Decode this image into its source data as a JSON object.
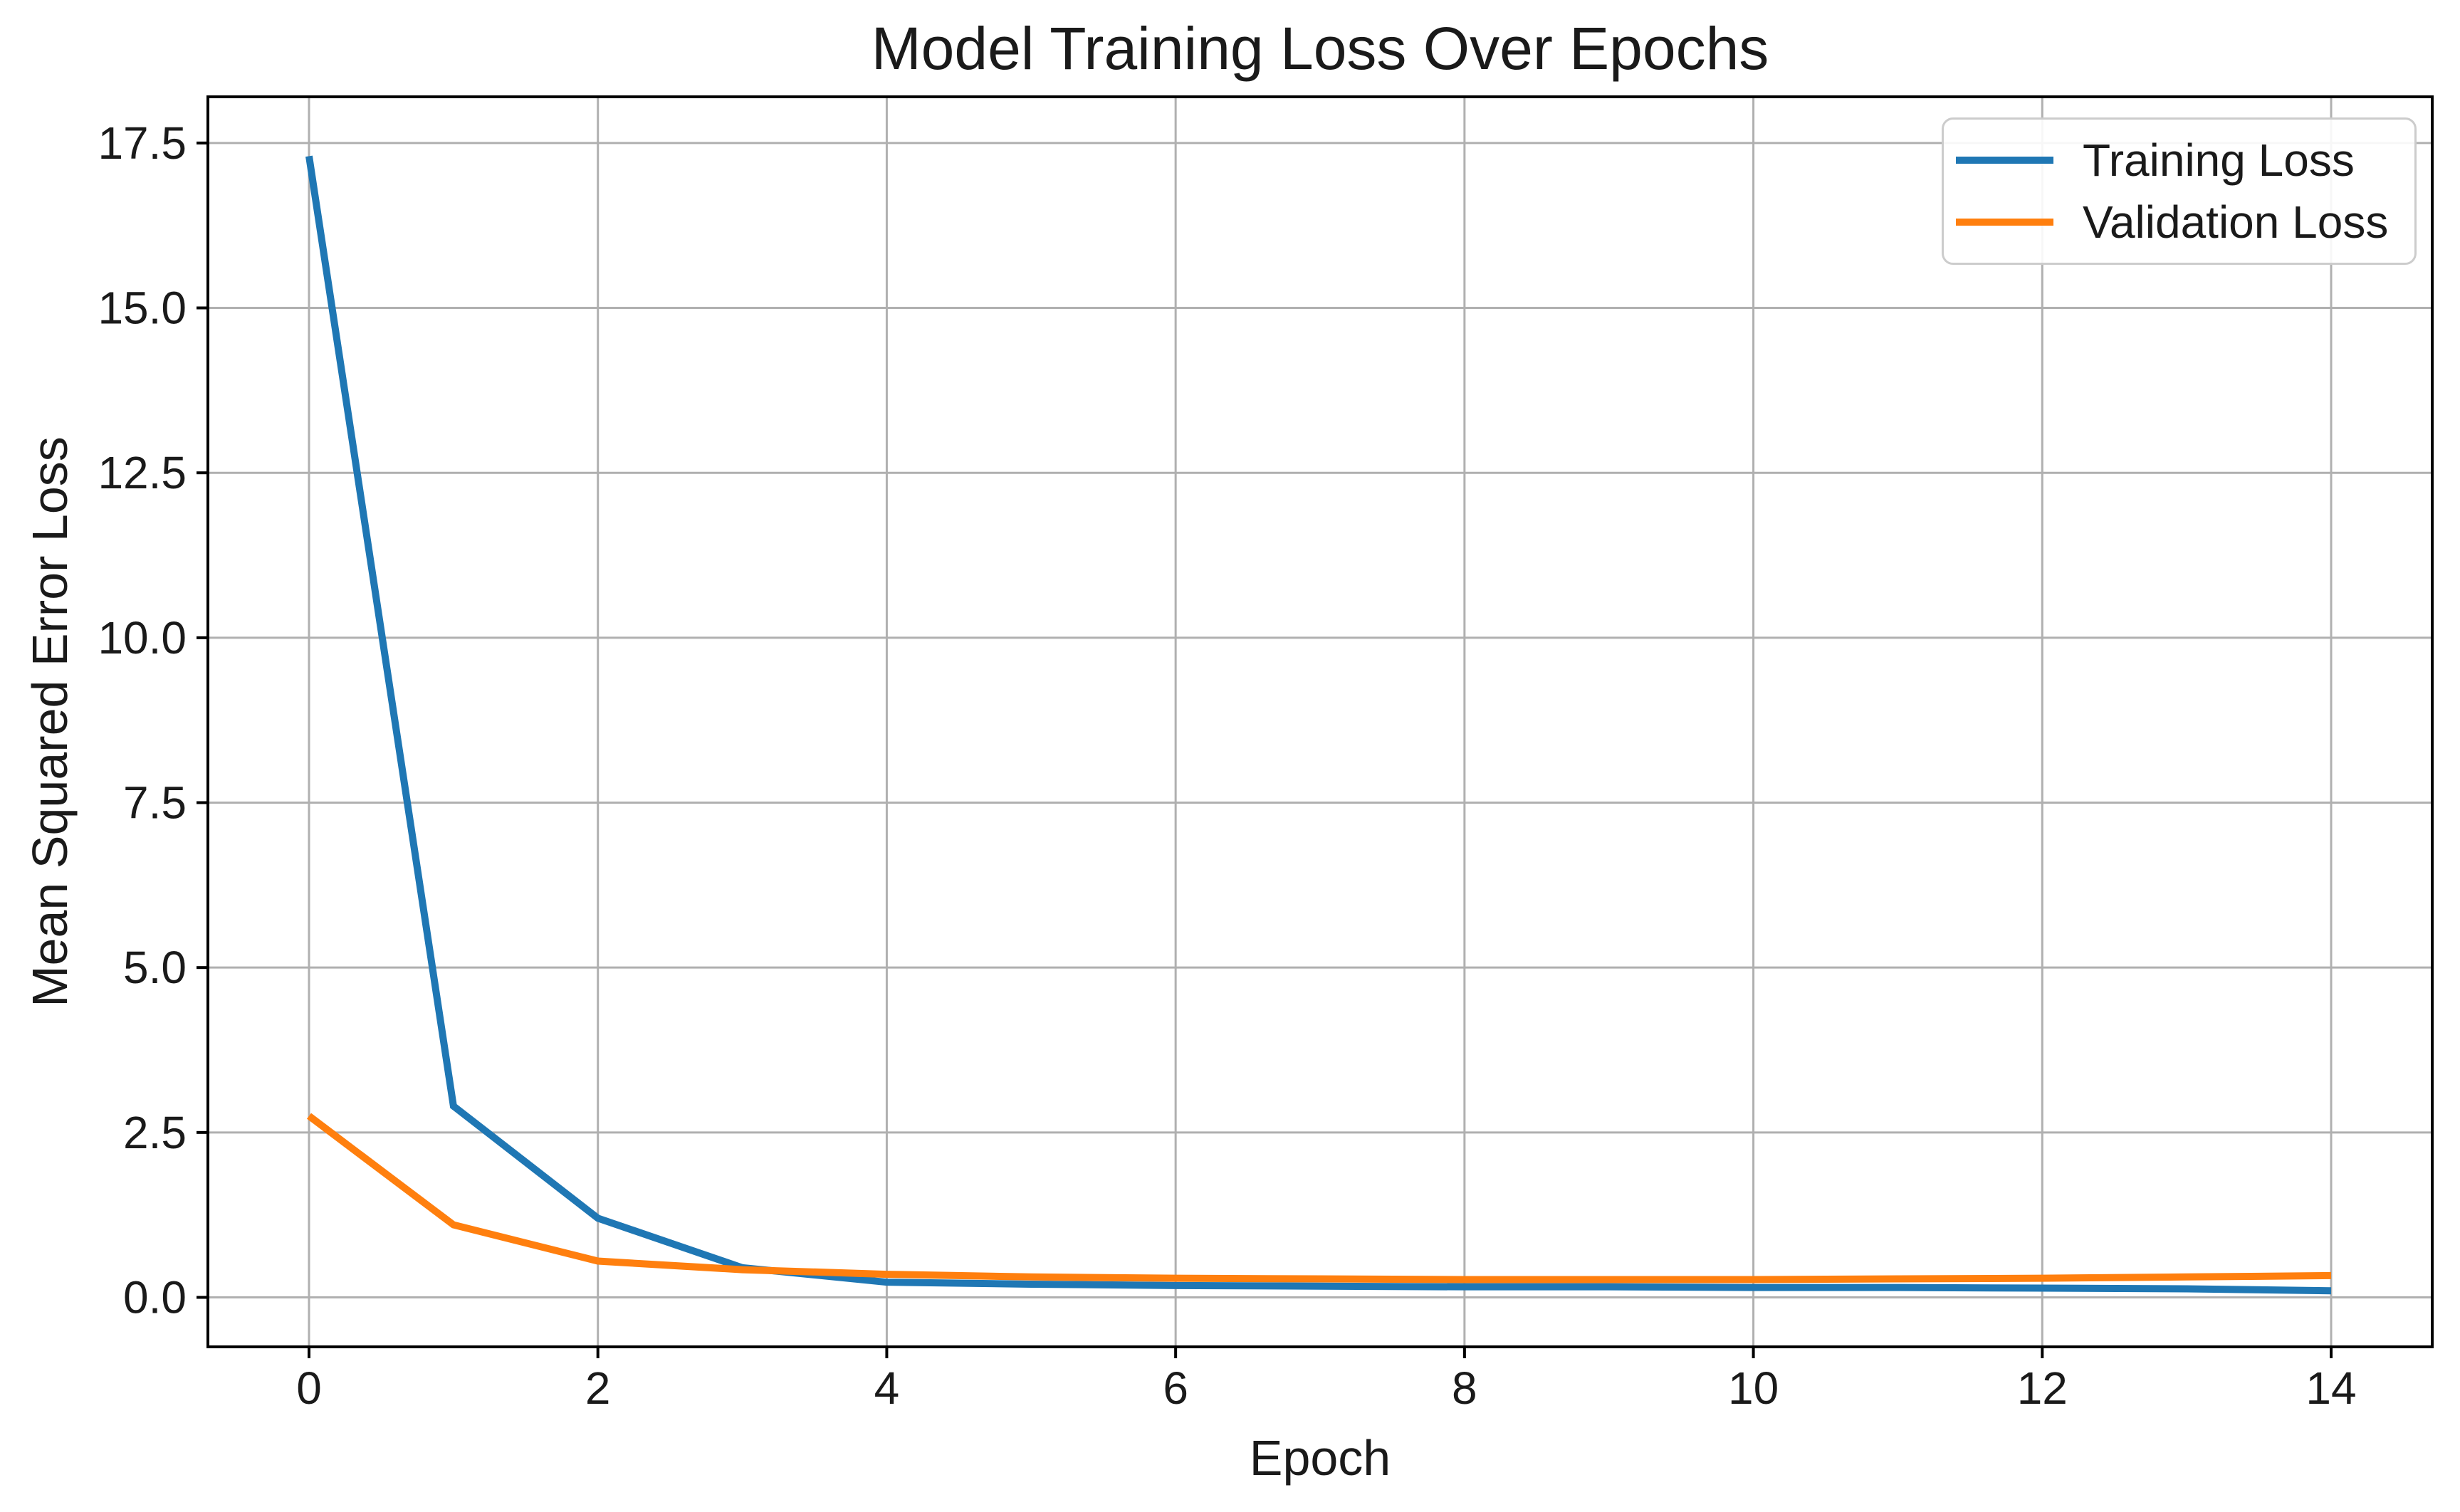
{
  "figure": {
    "title": "Model Training Loss Over Epochs"
  },
  "axes": {
    "xlabel": "Epoch",
    "ylabel": "Mean Squared Error Loss",
    "xtick_labels": [
      "0",
      "2",
      "4",
      "6",
      "8",
      "10",
      "12",
      "14"
    ],
    "ytick_labels": [
      "0.0",
      "2.5",
      "5.0",
      "7.5",
      "10.0",
      "12.5",
      "15.0",
      "17.5"
    ]
  },
  "chart_data": {
    "type": "line",
    "title": "Model Training Loss Over Epochs",
    "xlabel": "Epoch",
    "ylabel": "Mean Squared Error Loss",
    "x": [
      0,
      1,
      2,
      3,
      4,
      5,
      6,
      7,
      8,
      9,
      10,
      11,
      12,
      13,
      14
    ],
    "series": [
      {
        "name": "Training Loss",
        "color": "#1f77b4",
        "values": [
          17.3,
          2.9,
          1.2,
          0.45,
          0.23,
          0.2,
          0.18,
          0.17,
          0.16,
          0.16,
          0.15,
          0.15,
          0.14,
          0.13,
          0.1
        ]
      },
      {
        "name": "Validation Loss",
        "color": "#ff7f0e",
        "values": [
          2.75,
          1.1,
          0.55,
          0.42,
          0.35,
          0.31,
          0.29,
          0.28,
          0.27,
          0.27,
          0.27,
          0.28,
          0.29,
          0.31,
          0.33
        ]
      }
    ],
    "xlim": [
      -0.7,
      14.7
    ],
    "ylim": [
      -0.75,
      18.2
    ],
    "xticks": [
      0,
      2,
      4,
      6,
      8,
      10,
      12,
      14
    ],
    "yticks": [
      0.0,
      2.5,
      5.0,
      7.5,
      10.0,
      12.5,
      15.0,
      17.5
    ],
    "grid": true,
    "legend_position": "upper right"
  }
}
